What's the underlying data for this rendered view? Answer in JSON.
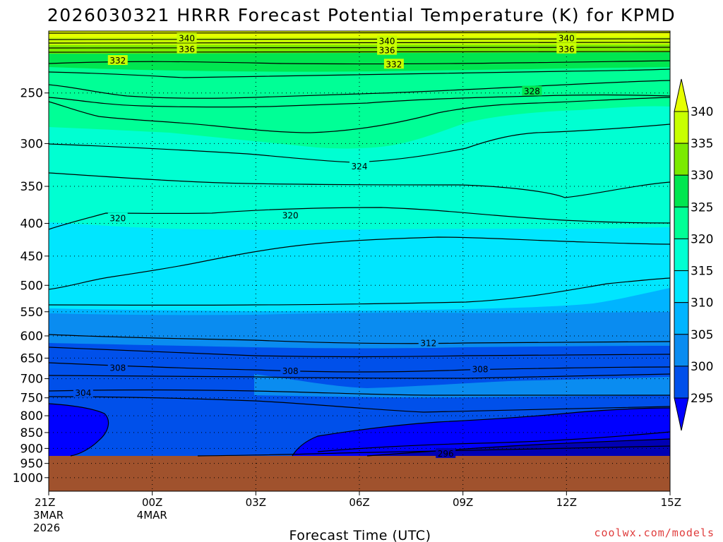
{
  "chart_data": {
    "type": "contour",
    "title": "2026030321 HRRR Forecast Potential Temperature (K) for KPMD",
    "xlabel": "Forecast Time (UTC)",
    "ylabel": "",
    "x_ticks": [
      {
        "lines": [
          "21Z",
          "3MAR",
          "2026"
        ]
      },
      {
        "lines": [
          "00Z",
          "4MAR"
        ]
      },
      {
        "lines": [
          "03Z"
        ]
      },
      {
        "lines": [
          "06Z"
        ]
      },
      {
        "lines": [
          "09Z"
        ]
      },
      {
        "lines": [
          "12Z"
        ]
      },
      {
        "lines": [
          "15Z"
        ]
      }
    ],
    "x_range_hours": [
      0,
      18
    ],
    "y_ticks": [
      "250",
      "300",
      "350",
      "400",
      "450",
      "500",
      "550",
      "600",
      "650",
      "700",
      "750",
      "800",
      "850",
      "900",
      "950",
      "1000"
    ],
    "y_scale": "log pressure (hPa)",
    "y_range_hpa": [
      1050,
      200
    ],
    "grid": "dotted",
    "colorbar": {
      "levels": [
        295,
        300,
        305,
        310,
        315,
        320,
        325,
        330,
        335,
        340
      ],
      "colors": [
        "#0000ff",
        "#0050ea",
        "#0a8cf0",
        "#00b4ff",
        "#00e6ff",
        "#00ffd2",
        "#00ff96",
        "#00e650",
        "#7bea00",
        "#c8ff00",
        "#e6ff00"
      ]
    },
    "terrain_color": "#a0522d",
    "terrain_top_hpa": 925,
    "contour_labels": [
      {
        "value": "340",
        "hour": 4.0,
        "p": 205
      },
      {
        "value": "340",
        "hour": 9.8,
        "p": 207
      },
      {
        "value": "340",
        "hour": 15.0,
        "p": 205
      },
      {
        "value": "336",
        "hour": 4.0,
        "p": 213
      },
      {
        "value": "336",
        "hour": 9.8,
        "p": 214
      },
      {
        "value": "336",
        "hour": 15.0,
        "p": 213
      },
      {
        "value": "332",
        "hour": 2.0,
        "p": 222
      },
      {
        "value": "332",
        "hour": 10.0,
        "p": 225
      },
      {
        "value": "328",
        "hour": 14.0,
        "p": 248
      },
      {
        "value": "324",
        "hour": 9.0,
        "p": 325
      },
      {
        "value": "320",
        "hour": 2.0,
        "p": 392
      },
      {
        "value": "320",
        "hour": 7.0,
        "p": 388
      },
      {
        "value": "312",
        "hour": 11.0,
        "p": 615
      },
      {
        "value": "308",
        "hour": 2.0,
        "p": 672
      },
      {
        "value": "308",
        "hour": 7.0,
        "p": 680
      },
      {
        "value": "308",
        "hour": 12.5,
        "p": 675
      },
      {
        "value": "304",
        "hour": 1.0,
        "p": 735
      },
      {
        "value": "296",
        "hour": 11.5,
        "p": 915
      }
    ]
  },
  "credit": "coolwx.com/models"
}
